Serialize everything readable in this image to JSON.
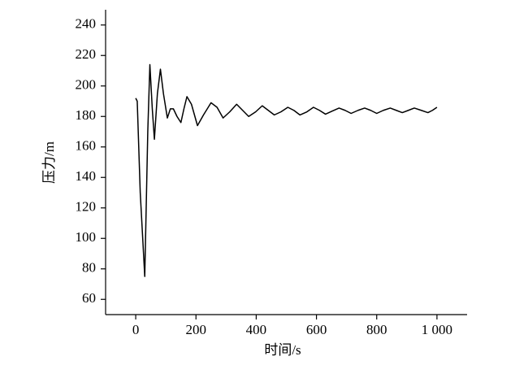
{
  "chart_data": {
    "type": "line",
    "x_label": "时间/s",
    "y_label": "压力/m",
    "x": [
      0,
      5,
      15,
      30,
      40,
      47,
      55,
      62,
      72,
      82,
      92,
      105,
      115,
      125,
      137,
      150,
      160,
      170,
      185,
      205,
      225,
      250,
      270,
      290,
      312,
      335,
      355,
      375,
      398,
      420,
      440,
      460,
      482,
      505,
      525,
      545,
      568,
      590,
      610,
      630,
      652,
      675,
      695,
      715,
      738,
      760,
      780,
      800,
      822,
      845,
      865,
      885,
      905,
      925,
      948,
      970,
      985,
      1000
    ],
    "series": [
      {
        "color": "#000000",
        "values": [
          192,
          190,
          130,
          75,
          170,
          214,
          185,
          165,
          195,
          211,
          195,
          179,
          185,
          185,
          180,
          176,
          185,
          193,
          188,
          174,
          181,
          189,
          186,
          179,
          183,
          188,
          184,
          180,
          183,
          187,
          184,
          181,
          183,
          186,
          184,
          181,
          183,
          186,
          184,
          181.5,
          183.5,
          185.5,
          184,
          182,
          184,
          185.5,
          184,
          182,
          184,
          185.5,
          184,
          182.5,
          184,
          185.5,
          184,
          182.5,
          184,
          186
        ]
      }
    ],
    "xlim": [
      -100,
      1100
    ],
    "ylim": [
      50,
      250
    ],
    "xticks": [
      0,
      200,
      400,
      600,
      800,
      {
        "value": 1000,
        "label": "1 000"
      }
    ],
    "yticks": [
      60,
      80,
      100,
      120,
      140,
      160,
      180,
      200,
      220,
      240
    ]
  }
}
